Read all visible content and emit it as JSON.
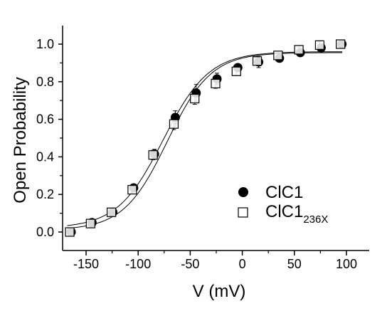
{
  "chart_data": {
    "type": "scatter",
    "xlabel": "V (mV)",
    "ylabel": "Open Probability",
    "xlim": [
      -200,
      120
    ],
    "ylim": [
      -0.1,
      1.1
    ],
    "x_ticks": [
      -150,
      -100,
      -50,
      0,
      50,
      100
    ],
    "y_ticks": [
      0.0,
      0.2,
      0.4,
      0.6,
      0.8,
      1.0
    ],
    "x_tick_labels": [
      "-150",
      "-100",
      "-50",
      "0",
      "50",
      "100"
    ],
    "y_tick_labels": [
      "0.0",
      "0.2",
      "0.4",
      "0.6",
      "0.8",
      "1.0"
    ],
    "legend_position": "lower-right",
    "series": [
      {
        "name": "ClC1",
        "marker": "filled-circle",
        "color": "#000000",
        "x": [
          -165,
          -145,
          -125,
          -105,
          -85,
          -65,
          -45,
          -25,
          -5,
          15,
          35,
          55,
          75,
          95
        ],
        "y": [
          0.0,
          0.05,
          0.105,
          0.235,
          0.415,
          0.61,
          0.74,
          0.815,
          0.875,
          0.905,
          0.925,
          0.955,
          0.98,
          1.0
        ],
        "error": [
          0.0,
          0.02,
          0.02,
          0.02,
          0.025,
          0.035,
          0.045,
          0.03,
          0.02,
          0.03,
          0.02,
          0.015,
          0.015,
          0.01
        ],
        "fit": {
          "bottom": 0.02,
          "top": 0.96,
          "v_half": -76,
          "slope": 22
        }
      },
      {
        "name": "ClC1",
        "name_subscript": "236X",
        "marker": "open-square",
        "color": "#000000",
        "x": [
          -165,
          -145,
          -125,
          -105,
          -85,
          -65,
          -45,
          -25,
          -5,
          15,
          35,
          55,
          75,
          95
        ],
        "y": [
          0.0,
          0.045,
          0.105,
          0.225,
          0.41,
          0.575,
          0.71,
          0.79,
          0.855,
          0.91,
          0.94,
          0.97,
          0.995,
          1.0
        ],
        "error": [
          0.0,
          0.02,
          0.02,
          0.02,
          0.025,
          0.03,
          0.03,
          0.025,
          0.02,
          0.015,
          0.015,
          0.015,
          0.02,
          0.01
        ],
        "fit": {
          "bottom": 0.01,
          "top": 0.955,
          "v_half": -72,
          "slope": 21
        }
      }
    ]
  }
}
